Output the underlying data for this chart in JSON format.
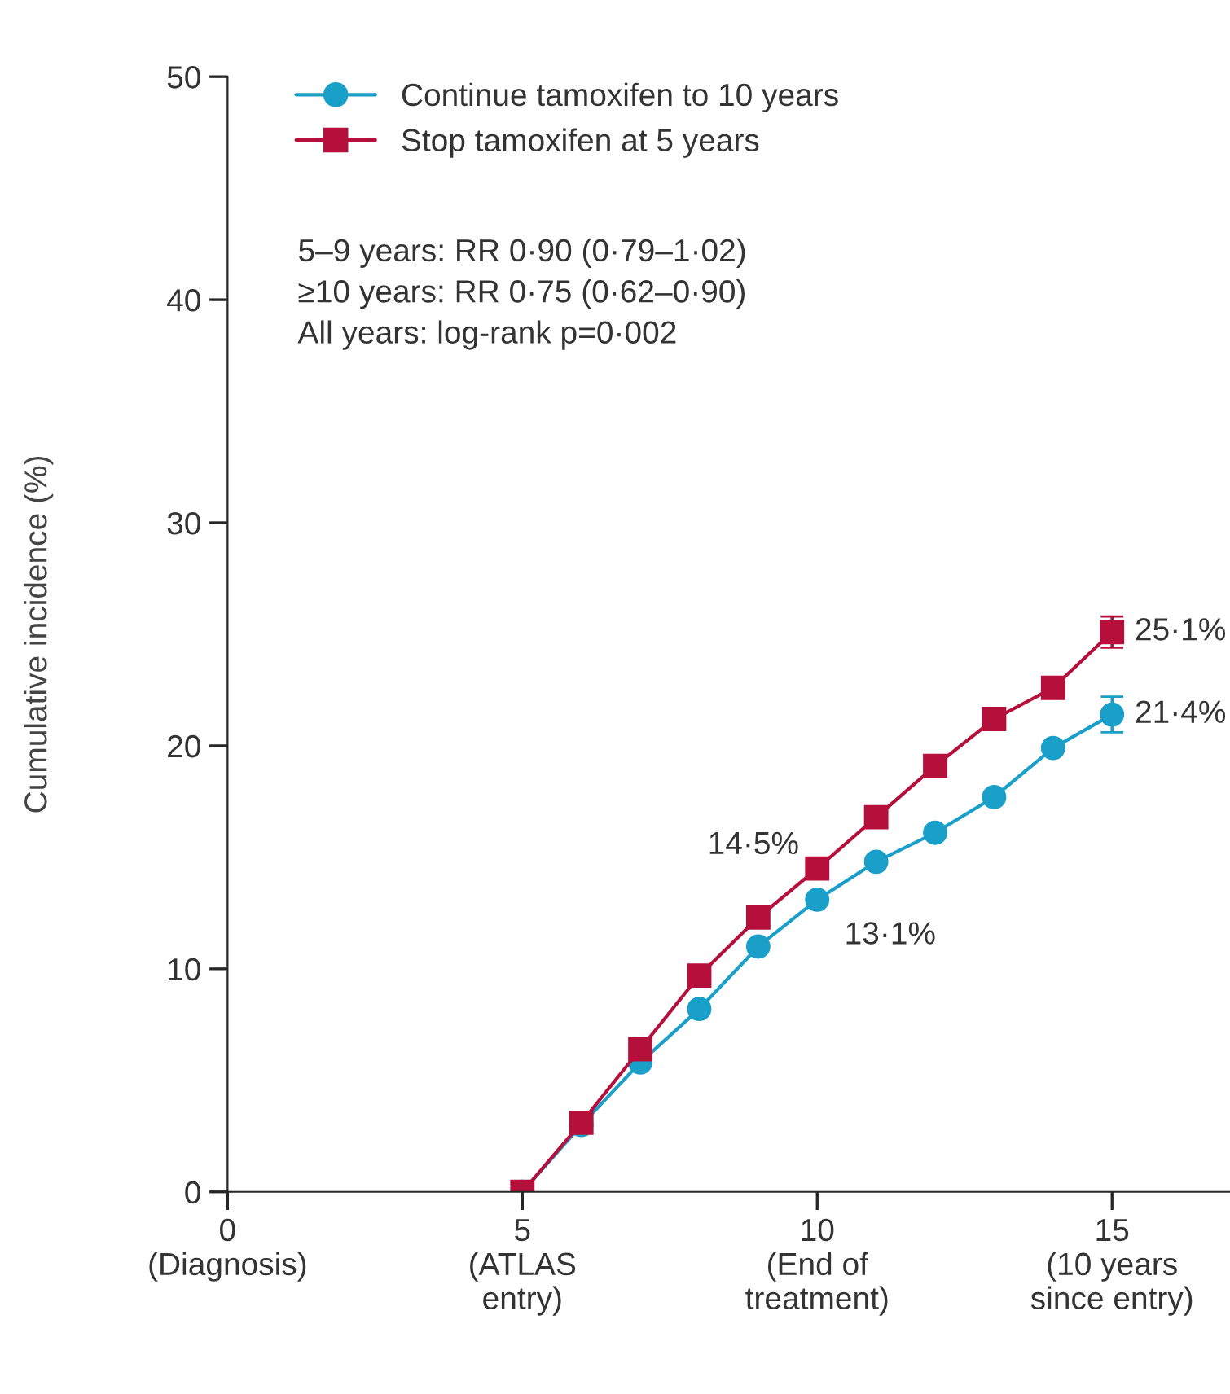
{
  "chart_data": {
    "type": "line",
    "ylabel": "Cumulative incidence (%)",
    "x": [
      5,
      6,
      7,
      8,
      9,
      10,
      11,
      12,
      13,
      14,
      15
    ],
    "series": [
      {
        "name": "Continue tamoxifen to 10 years",
        "color": "#1a9fc9",
        "marker": "circle",
        "values": [
          0,
          3.0,
          5.8,
          8.2,
          11.0,
          13.1,
          14.8,
          16.1,
          17.7,
          19.9,
          21.4
        ],
        "errors": [
          null,
          null,
          null,
          null,
          null,
          null,
          null,
          null,
          null,
          null,
          0.8
        ],
        "value_labels": [
          null,
          null,
          null,
          null,
          null,
          "13·1%",
          null,
          null,
          null,
          null,
          "21·4%"
        ]
      },
      {
        "name": "Stop tamoxifen at 5 years",
        "color": "#b5103c",
        "marker": "square",
        "values": [
          0,
          3.1,
          6.4,
          9.7,
          12.3,
          14.5,
          16.8,
          19.1,
          21.2,
          22.6,
          25.1
        ],
        "errors": [
          null,
          null,
          null,
          null,
          null,
          null,
          null,
          null,
          null,
          null,
          0.7
        ],
        "value_labels": [
          null,
          null,
          null,
          null,
          null,
          "14·5%",
          null,
          null,
          null,
          null,
          "25·1%"
        ]
      }
    ],
    "xlim": [
      0,
      17
    ],
    "ylim": [
      0,
      50
    ],
    "xticks": [
      {
        "value": 0,
        "label": "0\n(Diagnosis)"
      },
      {
        "value": 5,
        "label": "5\n(ATLAS\nentry)"
      },
      {
        "value": 10,
        "label": "10\n(End of\ntreatment)"
      },
      {
        "value": 15,
        "label": "15\n(10 years\nsince entry)"
      }
    ],
    "yticks": [
      0,
      10,
      20,
      30,
      40,
      50
    ],
    "annotations": [
      "5–9 years: RR 0·90 (0·79–1·02)\n≥10 years: RR 0·75 (0·62–0·90)\nAll years: log-rank p=0·002"
    ],
    "legend": "top left",
    "grid": false,
    "line_style": "solid"
  }
}
